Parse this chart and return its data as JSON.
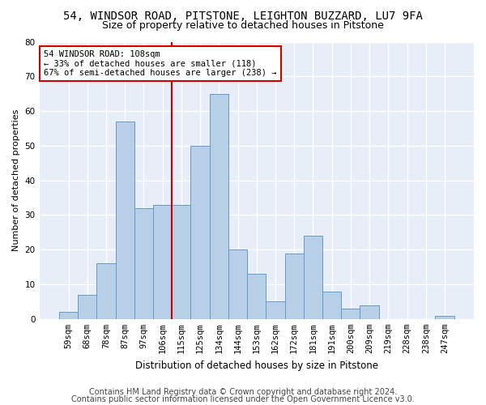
{
  "title1": "54, WINDSOR ROAD, PITSTONE, LEIGHTON BUZZARD, LU7 9FA",
  "title2": "Size of property relative to detached houses in Pitstone",
  "xlabel": "Distribution of detached houses by size in Pitstone",
  "ylabel": "Number of detached properties",
  "categories": [
    "59sqm",
    "68sqm",
    "78sqm",
    "87sqm",
    "97sqm",
    "106sqm",
    "115sqm",
    "125sqm",
    "134sqm",
    "144sqm",
    "153sqm",
    "162sqm",
    "172sqm",
    "181sqm",
    "191sqm",
    "200sqm",
    "209sqm",
    "219sqm",
    "228sqm",
    "238sqm",
    "247sqm"
  ],
  "values": [
    2,
    7,
    16,
    57,
    32,
    33,
    33,
    50,
    65,
    20,
    13,
    5,
    19,
    24,
    8,
    3,
    4,
    0,
    0,
    0,
    1
  ],
  "bar_color": "#b8cfe8",
  "bar_edge_color": "#6699cc",
  "vline_x": 5.5,
  "vline_color": "#cc0000",
  "annotation_line1": "54 WINDSOR ROAD: 108sqm",
  "annotation_line2": "← 33% of detached houses are smaller (118)",
  "annotation_line3": "67% of semi-detached houses are larger (238) →",
  "annotation_box_color": "#cc0000",
  "ylim": [
    0,
    80
  ],
  "yticks": [
    0,
    10,
    20,
    30,
    40,
    50,
    60,
    70,
    80
  ],
  "footer1": "Contains HM Land Registry data © Crown copyright and database right 2024.",
  "footer2": "Contains public sector information licensed under the Open Government Licence v3.0.",
  "background_color": "#e8eef8",
  "grid_color": "#ffffff",
  "title1_fontsize": 10,
  "title2_fontsize": 9,
  "xlabel_fontsize": 8.5,
  "ylabel_fontsize": 8,
  "footer_fontsize": 7,
  "tick_fontsize": 7.5,
  "annot_fontsize": 7.5
}
